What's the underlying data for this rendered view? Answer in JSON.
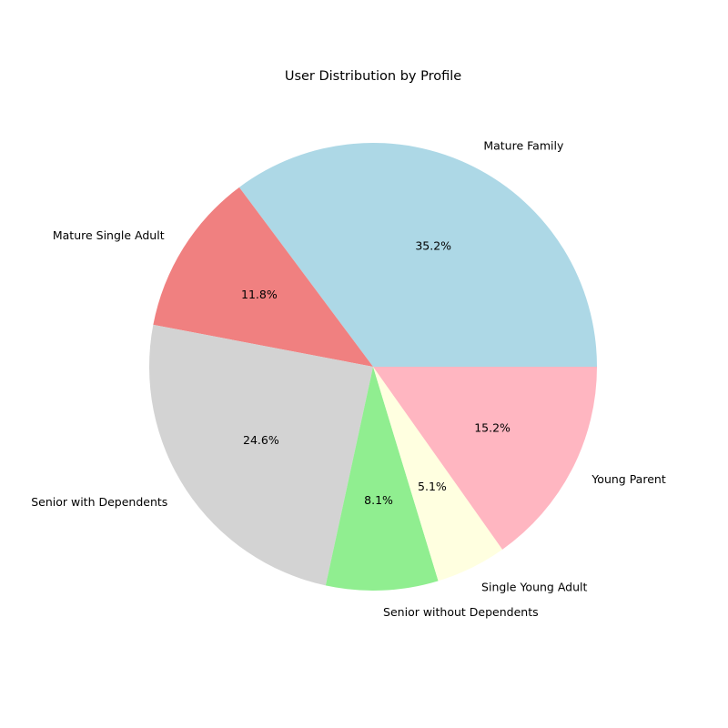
{
  "chart_data": {
    "type": "pie",
    "title": "User Distribution by Profile",
    "start_angle_deg": 0,
    "direction": "counterclockwise",
    "slices": [
      {
        "label": "Mature Family",
        "value": 35.2,
        "pct_label": "35.2%",
        "color": "#add8e6"
      },
      {
        "label": "Mature Single Adult",
        "value": 11.8,
        "pct_label": "11.8%",
        "color": "#f08080"
      },
      {
        "label": "Senior with Dependents",
        "value": 24.6,
        "pct_label": "24.6%",
        "color": "#d3d3d3"
      },
      {
        "label": "Senior without Dependents",
        "value": 8.1,
        "pct_label": "8.1%",
        "color": "#90ee90"
      },
      {
        "label": "Single Young Adult",
        "value": 5.1,
        "pct_label": "5.1%",
        "color": "#ffffe0"
      },
      {
        "label": "Young Parent",
        "value": 15.2,
        "pct_label": "15.2%",
        "color": "#ffb6c1"
      }
    ]
  }
}
